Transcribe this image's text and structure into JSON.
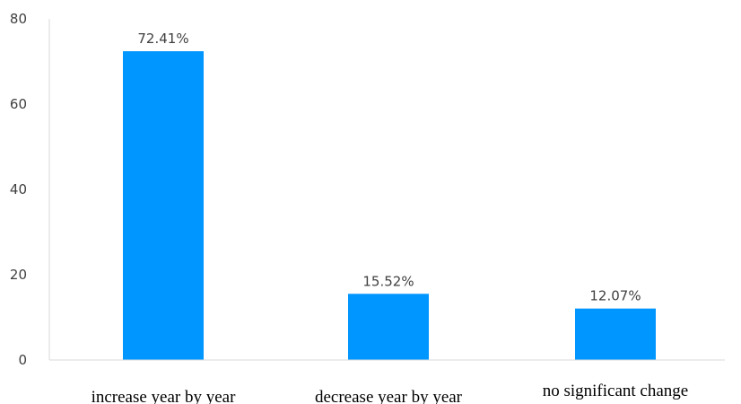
{
  "chart_data": {
    "type": "bar",
    "categories": [
      "increase year by year",
      "decrease year by year",
      "no significant change"
    ],
    "values": [
      72.41,
      15.52,
      12.07
    ],
    "data_labels": [
      "72.41%",
      "15.52%",
      "12.07%"
    ],
    "y_ticks": [
      "0",
      "20",
      "40",
      "60",
      "80"
    ],
    "ylim": [
      0,
      80
    ],
    "grid": false,
    "legend": "none",
    "colors": {
      "bar": "#0096FF",
      "axis": "#D9D9D9",
      "text": "#404040"
    }
  }
}
